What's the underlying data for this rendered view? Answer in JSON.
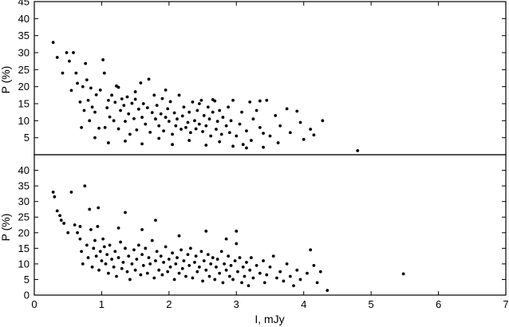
{
  "chart_data": [
    {
      "type": "scatter",
      "ylabel": "P (%)",
      "xlim": [
        0,
        7
      ],
      "ylim": [
        0,
        45
      ],
      "yticks": [
        5,
        10,
        15,
        20,
        25,
        30,
        35,
        40,
        45
      ],
      "grid": false,
      "marker_color": "#000000",
      "points": [
        [
          0.28,
          33
        ],
        [
          0.34,
          28.6
        ],
        [
          0.42,
          24
        ],
        [
          0.48,
          30
        ],
        [
          0.52,
          27.5
        ],
        [
          0.55,
          18.9
        ],
        [
          0.58,
          30
        ],
        [
          0.62,
          24
        ],
        [
          0.64,
          21
        ],
        [
          0.68,
          15.5
        ],
        [
          0.7,
          8
        ],
        [
          0.72,
          20
        ],
        [
          0.74,
          13
        ],
        [
          0.76,
          26.8
        ],
        [
          0.78,
          22
        ],
        [
          0.8,
          16
        ],
        [
          0.82,
          10
        ],
        [
          0.84,
          19.6
        ],
        [
          0.86,
          14
        ],
        [
          0.9,
          12.5
        ],
        [
          0.92,
          17.6
        ],
        [
          0.96,
          7.8
        ],
        [
          0.98,
          19
        ],
        [
          1.02,
          27.9
        ],
        [
          1.04,
          24
        ],
        [
          1.05,
          8
        ],
        [
          1.08,
          13.8
        ],
        [
          1.1,
          16
        ],
        [
          1.12,
          11.1
        ],
        [
          1.15,
          17.5
        ],
        [
          1.18,
          10
        ],
        [
          1.2,
          15.4
        ],
        [
          1.22,
          20.2
        ],
        [
          1.25,
          7.6
        ],
        [
          1.28,
          13
        ],
        [
          1.3,
          16.4
        ],
        [
          1.33,
          14.5
        ],
        [
          1.35,
          9.8
        ],
        [
          1.38,
          17
        ],
        [
          1.4,
          12
        ],
        [
          1.42,
          6
        ],
        [
          1.45,
          15.1
        ],
        [
          1.48,
          10.6
        ],
        [
          1.5,
          16.3
        ],
        [
          1.52,
          7.3
        ],
        [
          1.55,
          13.4
        ],
        [
          1.58,
          21.1
        ],
        [
          1.6,
          11
        ],
        [
          1.62,
          15
        ],
        [
          1.65,
          9
        ],
        [
          1.68,
          13.8
        ],
        [
          1.7,
          22.2
        ],
        [
          1.72,
          6.6
        ],
        [
          1.75,
          12.4
        ],
        [
          1.78,
          17.5
        ],
        [
          1.8,
          10.5
        ],
        [
          1.82,
          14.5
        ],
        [
          1.85,
          8.5
        ],
        [
          1.88,
          12
        ],
        [
          1.9,
          16.5
        ],
        [
          1.92,
          7
        ],
        [
          1.95,
          11
        ],
        [
          1.98,
          13.5
        ],
        [
          2,
          9.8
        ],
        [
          2.02,
          15.6
        ],
        [
          2.05,
          6
        ],
        [
          2.08,
          12.3
        ],
        [
          2.1,
          8.5
        ],
        [
          2.12,
          10.5
        ],
        [
          2.15,
          17.5
        ],
        [
          2.18,
          7.5
        ],
        [
          2.2,
          11.4
        ],
        [
          2.22,
          14
        ],
        [
          2.25,
          8
        ],
        [
          2.28,
          9.5
        ],
        [
          2.3,
          12.5
        ],
        [
          2.32,
          6.5
        ],
        [
          2.35,
          15.5
        ],
        [
          2.38,
          10
        ],
        [
          2.4,
          7.6
        ],
        [
          2.42,
          13
        ],
        [
          2.45,
          9
        ],
        [
          2.48,
          16
        ],
        [
          2.5,
          6.8
        ],
        [
          2.52,
          11.5
        ],
        [
          2.55,
          8.5
        ],
        [
          2.58,
          14
        ],
        [
          2.6,
          10.5
        ],
        [
          2.62,
          5.5
        ],
        [
          2.65,
          12.5
        ],
        [
          2.68,
          15.8
        ],
        [
          2.7,
          7.5
        ],
        [
          2.72,
          9.8
        ],
        [
          2.75,
          13
        ],
        [
          2.78,
          6
        ],
        [
          2.8,
          11
        ],
        [
          2.85,
          8.5
        ],
        [
          2.88,
          14
        ],
        [
          2.9,
          6.5
        ],
        [
          2.92,
          10
        ],
        [
          2.95,
          16
        ],
        [
          3,
          5.5
        ],
        [
          3.05,
          9
        ],
        [
          3.08,
          12.5
        ],
        [
          3.1,
          3
        ],
        [
          3.15,
          7
        ],
        [
          3.2,
          15.5
        ],
        [
          3.22,
          4.2
        ],
        [
          3.25,
          10.5
        ],
        [
          3.3,
          13
        ],
        [
          3.35,
          8
        ],
        [
          3.4,
          6.3
        ],
        [
          3.45,
          16
        ],
        [
          3.5,
          5.5
        ],
        [
          3.58,
          11.5
        ],
        [
          3.62,
          3.5
        ],
        [
          3.65,
          8.5
        ],
        [
          3.75,
          13.5
        ],
        [
          3.8,
          6.5
        ],
        [
          3.9,
          12.8
        ],
        [
          3.95,
          9.5
        ],
        [
          4,
          4.5
        ],
        [
          4.1,
          7.5
        ],
        [
          4.15,
          5.8
        ],
        [
          4.28,
          10
        ],
        [
          4.8,
          1.2
        ],
        [
          0.9,
          5
        ],
        [
          1.1,
          3.5
        ],
        [
          1.35,
          4
        ],
        [
          1.6,
          3.2
        ],
        [
          1.85,
          4.8
        ],
        [
          2.05,
          3
        ],
        [
          2.3,
          4.2
        ],
        [
          2.55,
          2.8
        ],
        [
          2.75,
          3.8
        ],
        [
          2.95,
          2.5
        ],
        [
          3.15,
          2
        ],
        [
          3.4,
          2.2
        ],
        [
          1.25,
          19.8
        ],
        [
          1.5,
          18.5
        ],
        [
          1.95,
          19
        ],
        [
          2.45,
          15
        ],
        [
          2.65,
          16.2
        ],
        [
          3.35,
          15.8
        ]
      ]
    },
    {
      "type": "scatter",
      "xlabel": "I, mJy",
      "ylabel": "P (%)",
      "xlim": [
        0,
        7
      ],
      "ylim": [
        0,
        45
      ],
      "xticks": [
        0,
        1,
        2,
        3,
        4,
        5,
        6,
        7
      ],
      "yticks": [
        0,
        5,
        10,
        15,
        20,
        25,
        30,
        35,
        40
      ],
      "grid": false,
      "marker_color": "#000000",
      "points": [
        [
          0.28,
          33
        ],
        [
          0.3,
          31.5
        ],
        [
          0.34,
          27
        ],
        [
          0.38,
          25.5
        ],
        [
          0.4,
          24
        ],
        [
          0.44,
          23
        ],
        [
          0.5,
          20
        ],
        [
          0.55,
          33
        ],
        [
          0.6,
          22.5
        ],
        [
          0.64,
          20
        ],
        [
          0.68,
          18
        ],
        [
          0.7,
          14
        ],
        [
          0.72,
          10
        ],
        [
          0.75,
          35
        ],
        [
          0.78,
          16
        ],
        [
          0.8,
          12
        ],
        [
          0.82,
          27.5
        ],
        [
          0.84,
          21
        ],
        [
          0.86,
          9
        ],
        [
          0.88,
          15
        ],
        [
          0.9,
          17.5
        ],
        [
          0.92,
          12.5
        ],
        [
          0.94,
          22
        ],
        [
          0.96,
          8
        ],
        [
          0.98,
          14
        ],
        [
          1,
          11
        ],
        [
          1.02,
          18
        ],
        [
          1.04,
          15.5
        ],
        [
          1.06,
          10
        ],
        [
          1.08,
          13
        ],
        [
          1.1,
          7
        ],
        [
          1.12,
          16
        ],
        [
          1.15,
          11.5
        ],
        [
          1.18,
          9
        ],
        [
          1.2,
          14
        ],
        [
          1.22,
          6
        ],
        [
          1.25,
          12
        ],
        [
          1.28,
          17
        ],
        [
          1.3,
          8.5
        ],
        [
          1.32,
          10.5
        ],
        [
          1.35,
          15
        ],
        [
          1.38,
          7.5
        ],
        [
          1.4,
          12.5
        ],
        [
          1.42,
          5
        ],
        [
          1.45,
          10
        ],
        [
          1.48,
          14.5
        ],
        [
          1.5,
          8
        ],
        [
          1.52,
          11.5
        ],
        [
          1.55,
          16
        ],
        [
          1.58,
          6.5
        ],
        [
          1.6,
          13
        ],
        [
          1.62,
          9.5
        ],
        [
          1.65,
          15
        ],
        [
          1.68,
          7
        ],
        [
          1.7,
          12
        ],
        [
          1.72,
          10
        ],
        [
          1.75,
          17.5
        ],
        [
          1.78,
          5.5
        ],
        [
          1.8,
          11
        ],
        [
          1.82,
          14
        ],
        [
          1.85,
          8
        ],
        [
          1.88,
          12.5
        ],
        [
          1.9,
          6.5
        ],
        [
          1.92,
          10.5
        ],
        [
          1.95,
          15.5
        ],
        [
          1.98,
          7.5
        ],
        [
          2,
          11.5
        ],
        [
          2.02,
          9
        ],
        [
          2.05,
          13.5
        ],
        [
          2.08,
          5
        ],
        [
          2.1,
          10
        ],
        [
          2.12,
          12
        ],
        [
          2.15,
          7
        ],
        [
          2.18,
          14.5
        ],
        [
          2.2,
          8.5
        ],
        [
          2.22,
          11
        ],
        [
          2.25,
          6
        ],
        [
          2.28,
          13
        ],
        [
          2.3,
          9.5
        ],
        [
          2.32,
          15
        ],
        [
          2.35,
          5.5
        ],
        [
          2.38,
          10.5
        ],
        [
          2.4,
          12.5
        ],
        [
          2.42,
          7.5
        ],
        [
          2.45,
          9
        ],
        [
          2.48,
          14
        ],
        [
          2.5,
          4.5
        ],
        [
          2.52,
          11
        ],
        [
          2.55,
          8
        ],
        [
          2.58,
          13
        ],
        [
          2.6,
          6
        ],
        [
          2.62,
          10
        ],
        [
          2.65,
          12
        ],
        [
          2.68,
          5
        ],
        [
          2.7,
          9
        ],
        [
          2.72,
          11.5
        ],
        [
          2.75,
          7
        ],
        [
          2.78,
          14
        ],
        [
          2.8,
          4
        ],
        [
          2.82,
          10
        ],
        [
          2.85,
          8
        ],
        [
          2.88,
          12.5
        ],
        [
          2.9,
          6
        ],
        [
          2.92,
          9.5
        ],
        [
          2.95,
          5
        ],
        [
          2.98,
          11
        ],
        [
          3,
          16.5
        ],
        [
          3.02,
          7.5
        ],
        [
          3.05,
          12
        ],
        [
          3.08,
          4
        ],
        [
          3.1,
          9
        ],
        [
          3.12,
          6
        ],
        [
          3.15,
          10.5
        ],
        [
          3.18,
          3
        ],
        [
          3.2,
          8
        ],
        [
          3.22,
          12
        ],
        [
          3.25,
          5.5
        ],
        [
          3.3,
          9.5
        ],
        [
          3.35,
          7
        ],
        [
          3.4,
          11
        ],
        [
          3.42,
          4
        ],
        [
          3.45,
          6.5
        ],
        [
          3.5,
          9
        ],
        [
          3.55,
          12.5
        ],
        [
          3.6,
          5.5
        ],
        [
          3.65,
          7.5
        ],
        [
          3.7,
          4.5
        ],
        [
          3.75,
          10
        ],
        [
          3.8,
          6
        ],
        [
          3.85,
          3
        ],
        [
          3.9,
          8
        ],
        [
          3.95,
          5
        ],
        [
          4.05,
          7
        ],
        [
          4.1,
          14.5
        ],
        [
          4.15,
          9.5
        ],
        [
          4.2,
          4
        ],
        [
          4.25,
          7.5
        ],
        [
          4.35,
          1.5
        ],
        [
          5.48,
          6.8
        ],
        [
          1.35,
          26.5
        ],
        [
          1.6,
          21
        ],
        [
          1.8,
          24
        ],
        [
          2.15,
          19
        ],
        [
          2.55,
          20.5
        ],
        [
          3,
          20.5
        ],
        [
          0.68,
          22
        ],
        [
          0.95,
          28
        ],
        [
          2.85,
          18
        ],
        [
          1.25,
          21.5
        ]
      ]
    }
  ]
}
